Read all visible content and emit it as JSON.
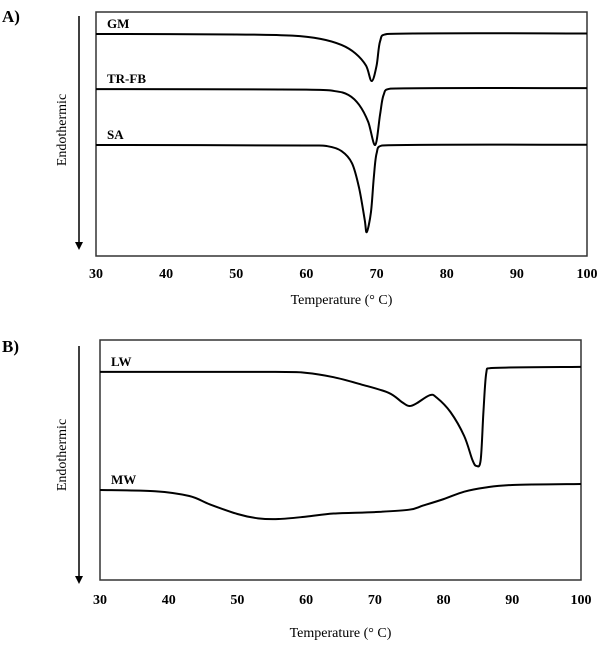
{
  "chart_data": [
    {
      "type": "line",
      "panel_label": "A)",
      "xlabel": "Temperature (° C)",
      "ylabel": "Endothermic",
      "xlim": [
        30,
        100
      ],
      "ylim": [
        0,
        100
      ],
      "xticks": [
        "30",
        "40",
        "50",
        "60",
        "70",
        "80",
        "90",
        "100"
      ],
      "grid": false,
      "series": [
        {
          "name": "GM",
          "points": [
            [
              30,
              91
            ],
            [
              50,
              90.8
            ],
            [
              58,
              90.3
            ],
            [
              62,
              89
            ],
            [
              65,
              86.5
            ],
            [
              67,
              83
            ],
            [
              68.5,
              78
            ],
            [
              69.3,
              71.7
            ],
            [
              70,
              78
            ],
            [
              70.5,
              88
            ],
            [
              71.5,
              91
            ],
            [
              100,
              91.2
            ]
          ]
        },
        {
          "name": "TR-FB",
          "points": [
            [
              30,
              68.4
            ],
            [
              60,
              68.2
            ],
            [
              64,
              67.6
            ],
            [
              66,
              66
            ],
            [
              67.5,
              62
            ],
            [
              68.8,
              55
            ],
            [
              69.8,
              45.5
            ],
            [
              70.5,
              58
            ],
            [
              71,
              66
            ],
            [
              72,
              68.6
            ],
            [
              100,
              68.8
            ]
          ]
        },
        {
          "name": "SA",
          "points": [
            [
              30,
              45.5
            ],
            [
              60,
              45.3
            ],
            [
              63,
              45
            ],
            [
              65,
              43
            ],
            [
              66.5,
              38
            ],
            [
              67.5,
              28
            ],
            [
              68.3,
              15
            ],
            [
              68.6,
              9.8
            ],
            [
              69.2,
              18
            ],
            [
              69.6,
              32
            ],
            [
              70,
              42
            ],
            [
              70.8,
              45.3
            ],
            [
              100,
              45.6
            ]
          ]
        }
      ]
    },
    {
      "type": "line",
      "panel_label": "B)",
      "xlabel": "Temperature (° C)",
      "ylabel": "Endothermic",
      "xlim": [
        30,
        100
      ],
      "ylim": [
        0,
        100
      ],
      "xticks": [
        "30",
        "40",
        "50",
        "60",
        "70",
        "80",
        "90",
        "100"
      ],
      "grid": false,
      "series": [
        {
          "name": "LW",
          "points": [
            [
              30,
              86.7
            ],
            [
              55,
              86.7
            ],
            [
              60,
              86.3
            ],
            [
              64,
              84.5
            ],
            [
              68,
              81.5
            ],
            [
              72,
              78
            ],
            [
              74,
              74
            ],
            [
              75,
              72.5
            ],
            [
              76,
              73.5
            ],
            [
              78,
              77
            ],
            [
              79,
              76
            ],
            [
              81,
              70
            ],
            [
              83,
              60
            ],
            [
              84.2,
              50
            ],
            [
              84.8,
              47.5
            ],
            [
              85.4,
              50
            ],
            [
              85.8,
              70
            ],
            [
              86.2,
              86
            ],
            [
              86.8,
              88.3
            ],
            [
              100,
              88.8
            ]
          ]
        },
        {
          "name": "MW",
          "points": [
            [
              30,
              37.5
            ],
            [
              38,
              37
            ],
            [
              43,
              35
            ],
            [
              46,
              31.5
            ],
            [
              50,
              27.5
            ],
            [
              53,
              25.7
            ],
            [
              56,
              25.4
            ],
            [
              60,
              26.4
            ],
            [
              64,
              27.7
            ],
            [
              70,
              28.3
            ],
            [
              75,
              29.3
            ],
            [
              77,
              31
            ],
            [
              80,
              33.7
            ],
            [
              83,
              36.8
            ],
            [
              86,
              38.5
            ],
            [
              90,
              39.6
            ],
            [
              100,
              40
            ]
          ]
        }
      ]
    }
  ]
}
